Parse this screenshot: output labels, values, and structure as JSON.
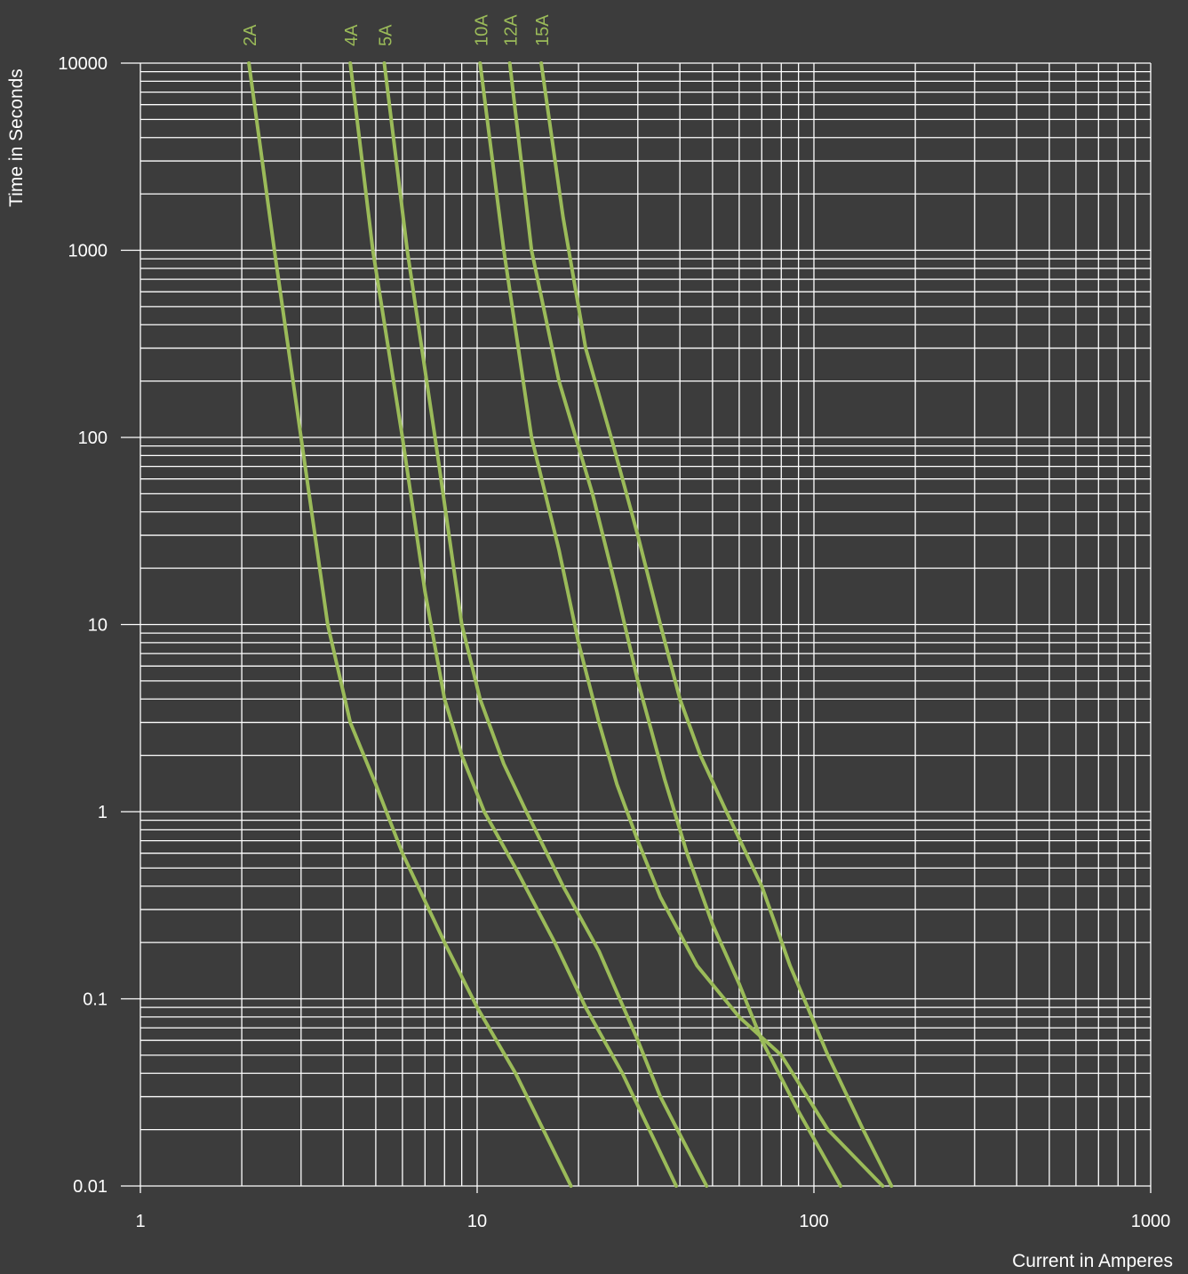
{
  "chart_data": {
    "type": "line",
    "xlabel": "Current in Amperes",
    "ylabel": "Time in Seconds",
    "x_scale": "log",
    "y_scale": "log",
    "xlim": [
      1,
      1000
    ],
    "ylim": [
      0.01,
      10000
    ],
    "x_ticks": [
      "1",
      "10",
      "100",
      "1000"
    ],
    "y_ticks": [
      "0.01",
      "0.1",
      "1",
      "10",
      "100",
      "1000",
      "10000"
    ],
    "grid": true,
    "line_color": "#9bbb59",
    "background": "#3c3c3c",
    "series": [
      {
        "name": "2A",
        "points": [
          [
            2.1,
            10000
          ],
          [
            2.5,
            1000
          ],
          [
            3.0,
            100
          ],
          [
            3.6,
            10
          ],
          [
            4.2,
            3
          ],
          [
            5.0,
            1.4
          ],
          [
            6.0,
            0.6
          ],
          [
            8.0,
            0.2
          ],
          [
            10.0,
            0.09
          ],
          [
            13.0,
            0.04
          ],
          [
            19.0,
            0.01
          ]
        ]
      },
      {
        "name": "4A",
        "points": [
          [
            4.2,
            10000
          ],
          [
            4.9,
            1000
          ],
          [
            6.0,
            100
          ],
          [
            7.0,
            15
          ],
          [
            8.0,
            4
          ],
          [
            9.0,
            2
          ],
          [
            10.5,
            1
          ],
          [
            13.0,
            0.5
          ],
          [
            17.0,
            0.2
          ],
          [
            21.0,
            0.09
          ],
          [
            27.0,
            0.04
          ],
          [
            39.0,
            0.01
          ]
        ]
      },
      {
        "name": "5A",
        "points": [
          [
            5.3,
            10000
          ],
          [
            6.2,
            1000
          ],
          [
            7.5,
            100
          ],
          [
            9.0,
            10
          ],
          [
            10.2,
            4
          ],
          [
            12.0,
            1.8
          ],
          [
            14.0,
            1
          ],
          [
            18.0,
            0.4
          ],
          [
            23.0,
            0.18
          ],
          [
            30.0,
            0.06
          ],
          [
            35.0,
            0.03
          ],
          [
            48.0,
            0.01
          ]
        ]
      },
      {
        "name": "10A",
        "points": [
          [
            10.2,
            10000
          ],
          [
            12.0,
            1000
          ],
          [
            14.5,
            100
          ],
          [
            17.5,
            25
          ],
          [
            20.0,
            8
          ],
          [
            23.0,
            3
          ],
          [
            26.0,
            1.4
          ],
          [
            30.0,
            0.7
          ],
          [
            35.0,
            0.35
          ],
          [
            45.0,
            0.15
          ],
          [
            60.0,
            0.08
          ],
          [
            80.0,
            0.05
          ],
          [
            110.0,
            0.02
          ],
          [
            160.0,
            0.01
          ]
        ]
      },
      {
        "name": "12A",
        "points": [
          [
            12.5,
            10000
          ],
          [
            14.5,
            1000
          ],
          [
            17.5,
            200
          ],
          [
            22.0,
            50
          ],
          [
            26.0,
            15
          ],
          [
            30.0,
            5
          ],
          [
            36.0,
            1.5
          ],
          [
            42.0,
            0.6
          ],
          [
            50.0,
            0.25
          ],
          [
            60.0,
            0.12
          ],
          [
            70.0,
            0.06
          ],
          [
            90.0,
            0.025
          ],
          [
            120.0,
            0.01
          ]
        ]
      },
      {
        "name": "15A",
        "points": [
          [
            15.5,
            10000
          ],
          [
            18.0,
            1500
          ],
          [
            21.0,
            300
          ],
          [
            25.0,
            100
          ],
          [
            30.0,
            30
          ],
          [
            35.0,
            10
          ],
          [
            40.0,
            4
          ],
          [
            46.0,
            2
          ],
          [
            55.0,
            1
          ],
          [
            70.0,
            0.4
          ],
          [
            85.0,
            0.15
          ],
          [
            110.0,
            0.05
          ],
          [
            140.0,
            0.02
          ],
          [
            170.0,
            0.01
          ]
        ]
      }
    ]
  }
}
